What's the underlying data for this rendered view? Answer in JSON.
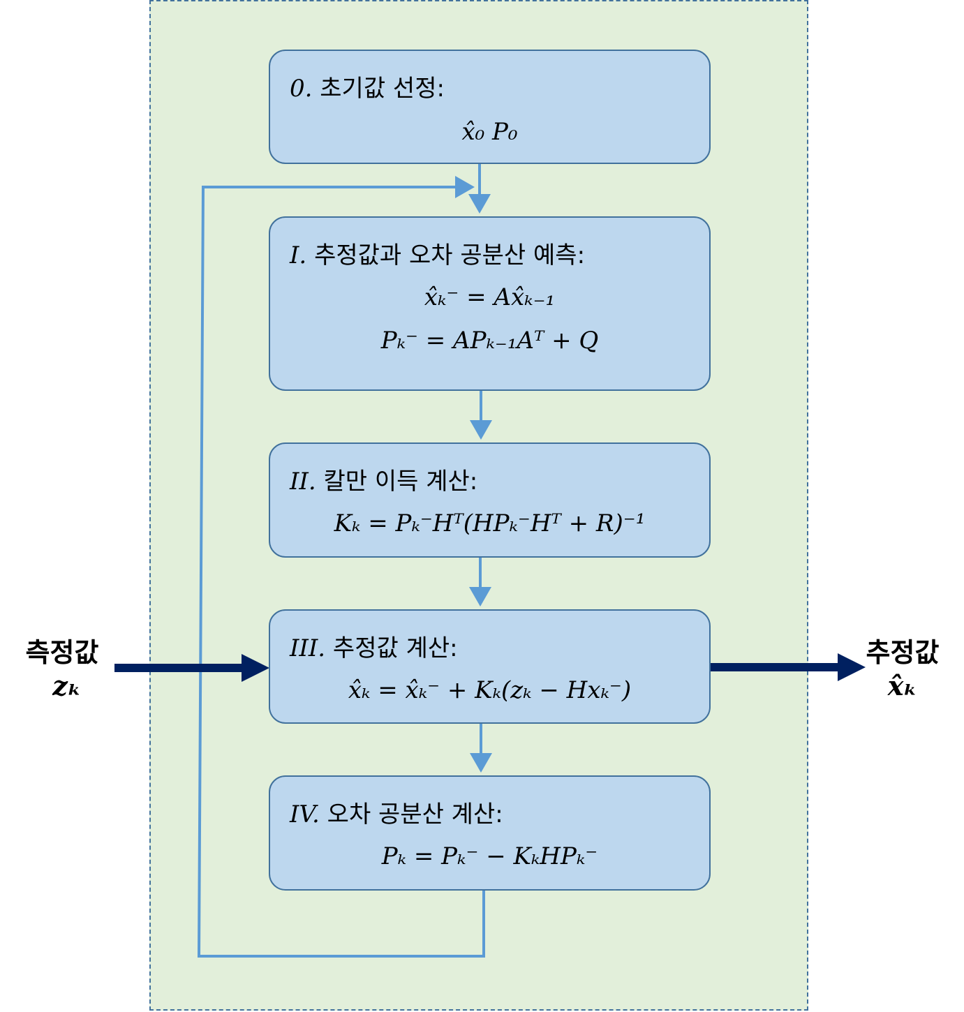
{
  "boxes": [
    {
      "id": "init",
      "num": "0.",
      "title": "초기값 선정:",
      "eq1": "x̂₀   P₀"
    },
    {
      "id": "predict",
      "num": "I.",
      "title": "추정값과 오차 공분산 예측:",
      "eq1": "x̂ₖ⁻ = Ax̂ₖ₋₁",
      "eq2": "Pₖ⁻ = APₖ₋₁Aᵀ + Q"
    },
    {
      "id": "gain",
      "num": "II.",
      "title": "칼만 이득 계산:",
      "eq1": "Kₖ = Pₖ⁻Hᵀ(HPₖ⁻Hᵀ + R)⁻¹"
    },
    {
      "id": "estimate",
      "num": "III.",
      "title": "추정값 계산:",
      "eq1": "x̂ₖ = x̂ₖ⁻ + Kₖ(zₖ − Hxₖ⁻)"
    },
    {
      "id": "covariance",
      "num": "IV.",
      "title": "오차 공분산 계산:",
      "eq1": "Pₖ = Pₖ⁻ − KₖHPₖ⁻"
    }
  ],
  "input": {
    "label": "측정값",
    "symbol": "zₖ"
  },
  "output": {
    "label": "추정값",
    "symbol": "x̂ₖ"
  },
  "colors": {
    "panel_fill": "#e2efda",
    "panel_border": "#41719c",
    "box_fill": "#bdd7ee",
    "box_border": "#41719c",
    "flow_arrow": "#5b9bd5",
    "io_arrow": "#002060"
  }
}
